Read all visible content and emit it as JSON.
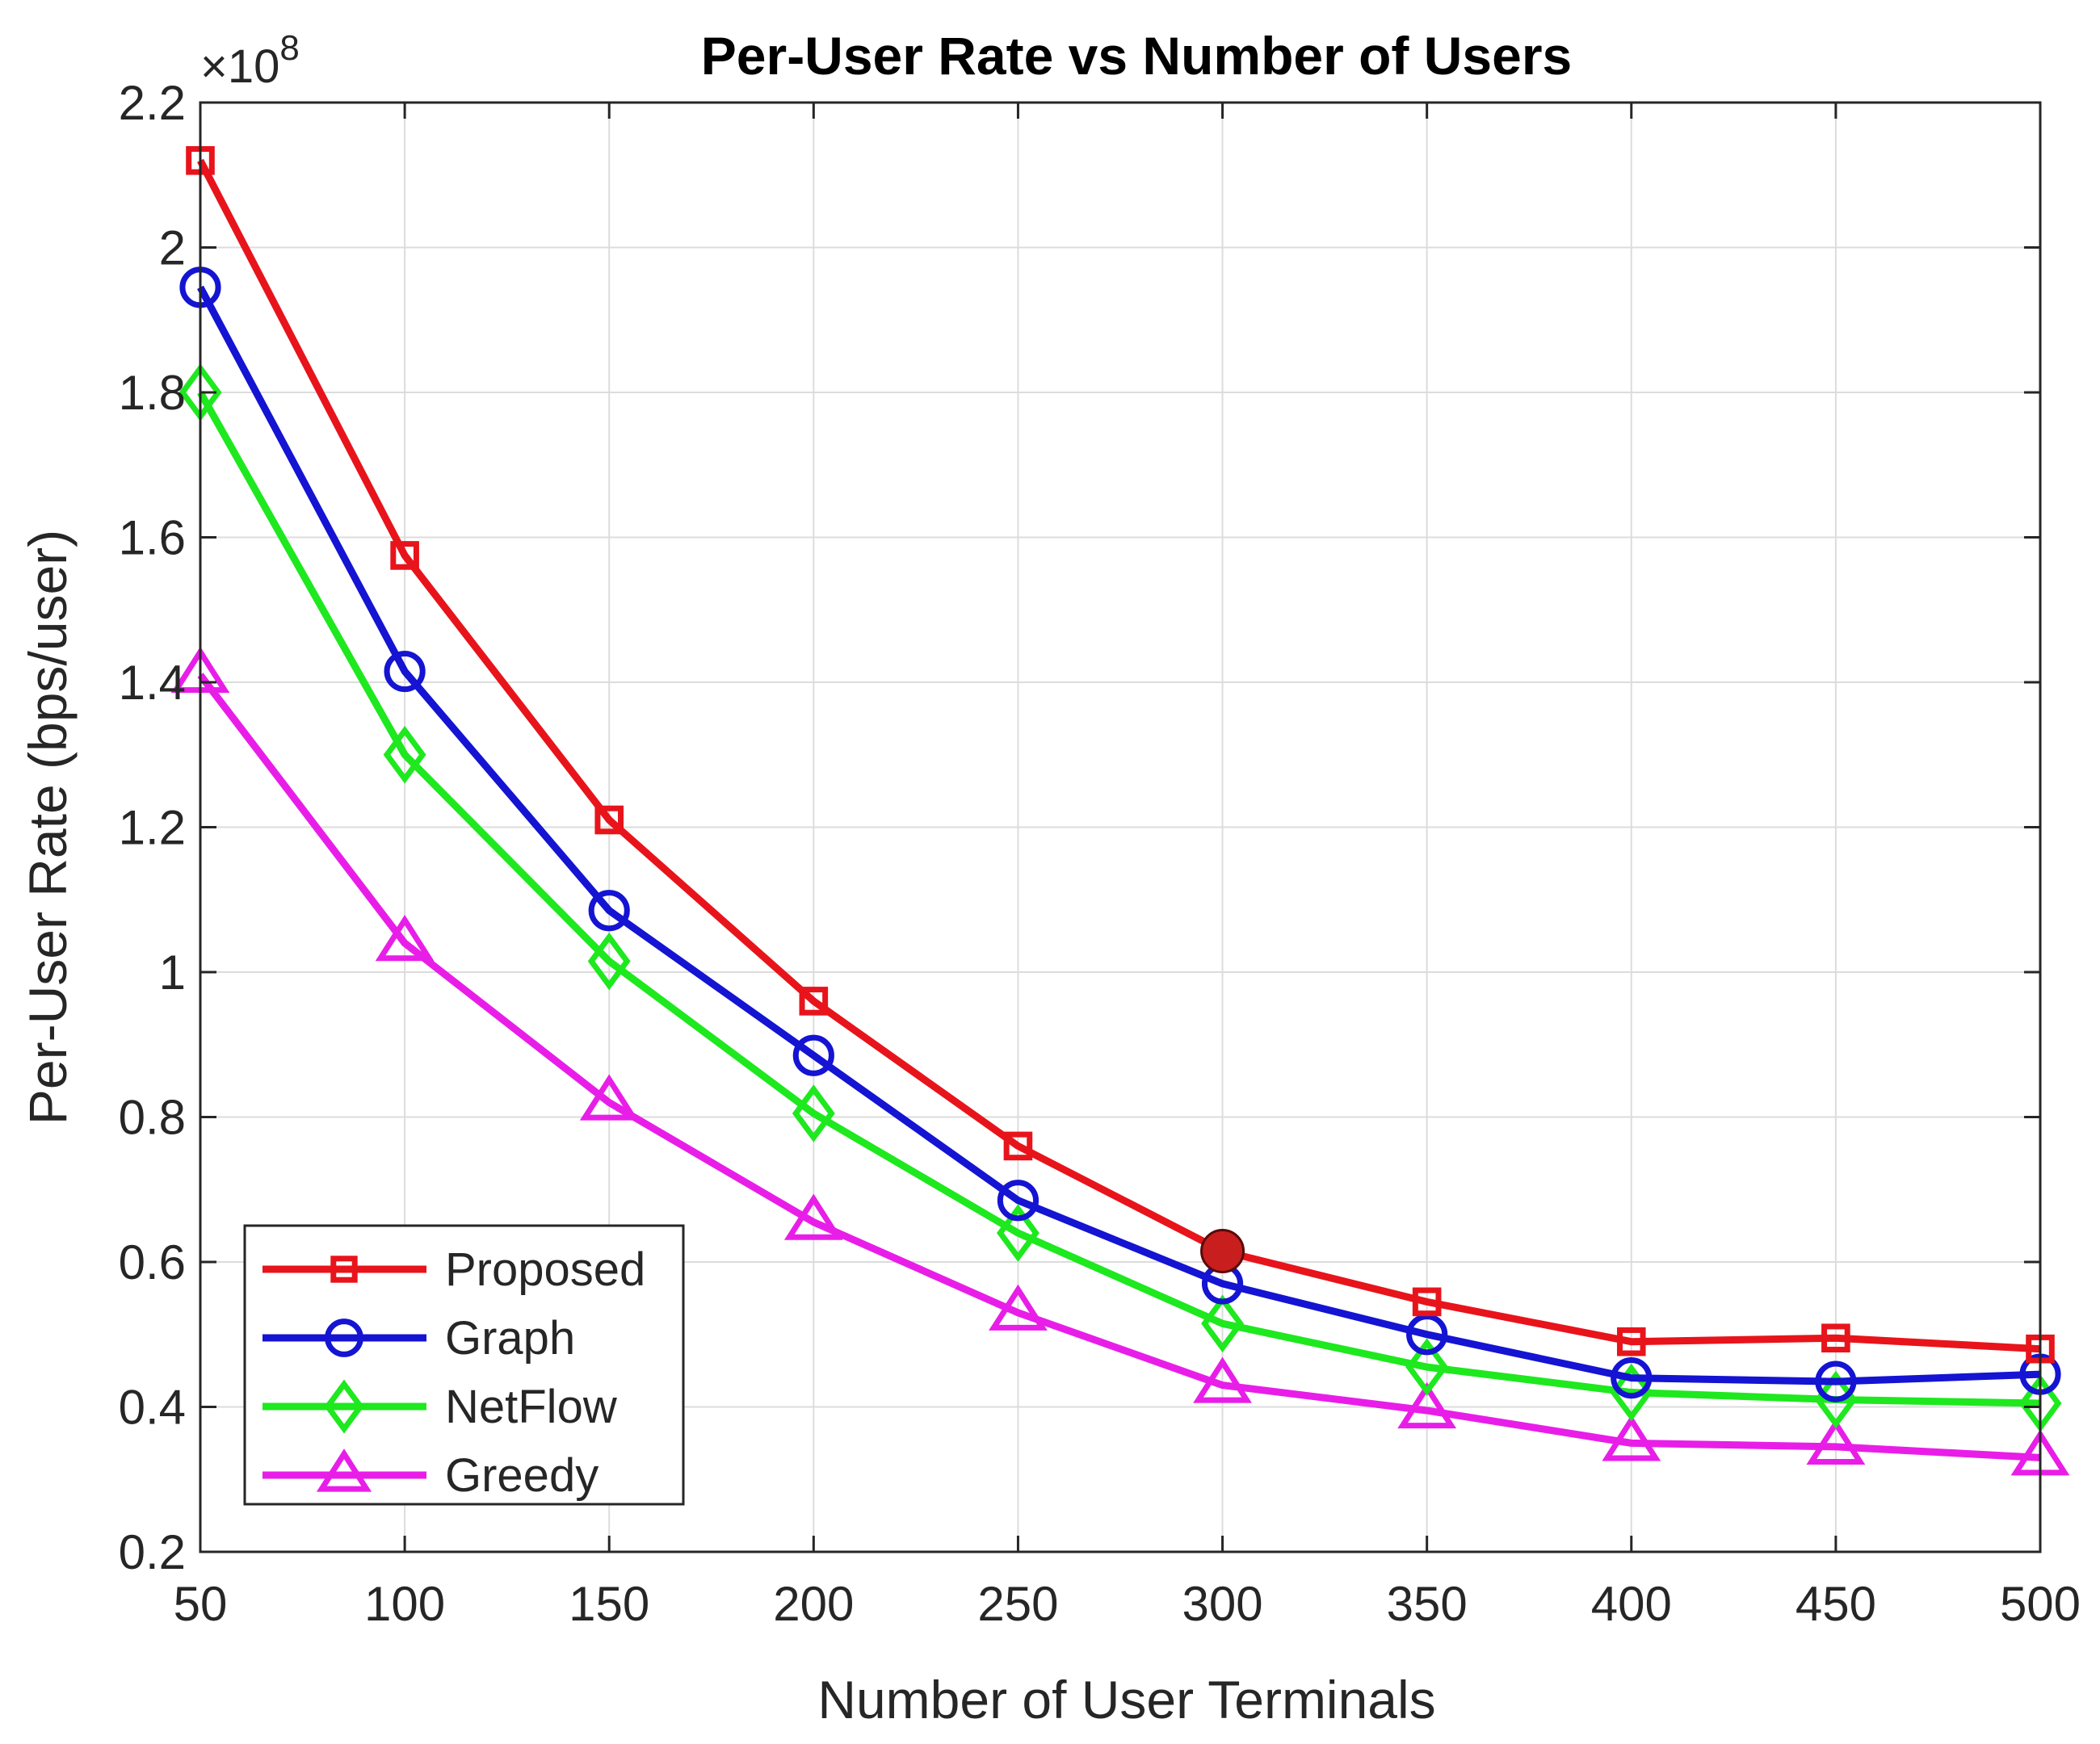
{
  "chart_data": {
    "type": "line",
    "title": "Per-User Rate vs Number of Users",
    "xlabel": "Number of User Terminals",
    "ylabel": "Per-User Rate (bps/user)",
    "y_exponent_label": {
      "base": "×10",
      "power": "8"
    },
    "x": [
      50,
      100,
      150,
      200,
      250,
      300,
      350,
      400,
      450,
      500
    ],
    "xlim": [
      50,
      500
    ],
    "ylim": [
      0.2,
      2.2
    ],
    "xticks": [
      "50",
      "100",
      "150",
      "200",
      "250",
      "300",
      "350",
      "400",
      "450",
      "500"
    ],
    "yticks": [
      "0.2",
      "0.4",
      "0.6",
      "0.8",
      "1",
      "1.2",
      "1.4",
      "1.6",
      "1.8",
      "2",
      "2.2"
    ],
    "ytick_values": [
      0.2,
      0.4,
      0.6,
      0.8,
      1.0,
      1.2,
      1.4,
      1.6,
      1.8,
      2.0,
      2.2
    ],
    "grid": true,
    "legend_position": "bottom-left",
    "series": [
      {
        "name": "Proposed",
        "color": "#e8141b",
        "marker": "square",
        "values": [
          2.12,
          1.575,
          1.21,
          0.96,
          0.76,
          0.615,
          0.545,
          0.49,
          0.495,
          0.48
        ]
      },
      {
        "name": "Graph",
        "color": "#1414d2",
        "marker": "circle",
        "values": [
          1.945,
          1.415,
          1.085,
          0.885,
          0.685,
          0.57,
          0.5,
          0.44,
          0.435,
          0.445
        ]
      },
      {
        "name": "NetFlow",
        "color": "#1ee81e",
        "marker": "diamond",
        "values": [
          1.8,
          1.3,
          1.015,
          0.805,
          0.64,
          0.515,
          0.455,
          0.42,
          0.41,
          0.405
        ]
      },
      {
        "name": "Greedy",
        "color": "#e81ee8",
        "marker": "triangle",
        "values": [
          1.41,
          1.04,
          0.82,
          0.655,
          0.53,
          0.43,
          0.395,
          0.35,
          0.345,
          0.33
        ]
      }
    ],
    "annotations": [
      {
        "type": "highlight-point",
        "series": "Proposed",
        "x": 300,
        "y": 0.615,
        "color": "#c81e1e"
      }
    ]
  }
}
